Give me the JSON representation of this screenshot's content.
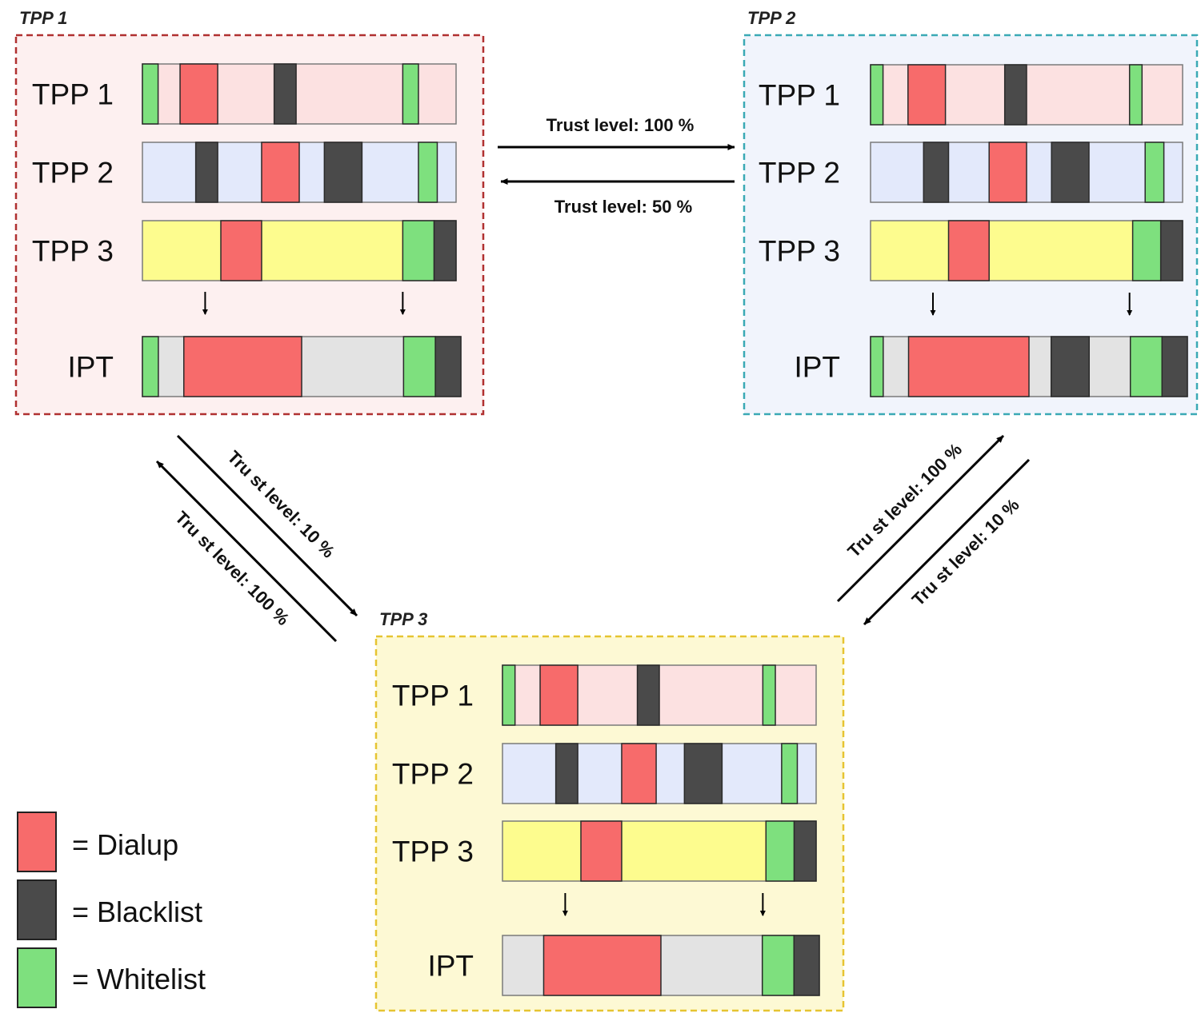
{
  "panels": [
    {
      "title": "TPP 1",
      "fill": "#fdf0f0",
      "border": "#b03030",
      "rows": [
        {
          "label": "TPP 1",
          "bg": "#fce1e1",
          "segments": [
            {
              "type": "whitelist",
              "from": 0.0,
              "to": 0.05
            },
            {
              "type": "dialup",
              "from": 0.12,
              "to": 0.24
            },
            {
              "type": "blacklist",
              "from": 0.42,
              "to": 0.49
            },
            {
              "type": "whitelist",
              "from": 0.83,
              "to": 0.88
            }
          ]
        },
        {
          "label": "TPP 2",
          "bg": "#e3e9fb",
          "segments": [
            {
              "type": "blacklist",
              "from": 0.17,
              "to": 0.24
            },
            {
              "type": "dialup",
              "from": 0.38,
              "to": 0.5
            },
            {
              "type": "blacklist",
              "from": 0.58,
              "to": 0.7
            },
            {
              "type": "whitelist",
              "from": 0.88,
              "to": 0.94
            }
          ]
        },
        {
          "label": "TPP 3",
          "bg": "#fdfc8e",
          "segments": [
            {
              "type": "dialup",
              "from": 0.25,
              "to": 0.38
            },
            {
              "type": "whitelist",
              "from": 0.83,
              "to": 0.93
            },
            {
              "type": "blacklist",
              "from": 0.93,
              "to": 1.0
            }
          ]
        },
        {
          "label": "IPT",
          "bg": "#e3e3e3",
          "segments": [
            {
              "type": "whitelist",
              "from": 0.0,
              "to": 0.05
            },
            {
              "type": "dialup",
              "from": 0.13,
              "to": 0.5
            },
            {
              "type": "whitelist",
              "from": 0.82,
              "to": 0.92
            },
            {
              "type": "blacklist",
              "from": 0.92,
              "to": 1.0
            }
          ]
        }
      ]
    },
    {
      "title": "TPP 2",
      "fill": "#f1f4fc",
      "border": "#3aa9b5",
      "rows": [
        {
          "label": "TPP 1",
          "bg": "#fce1e1",
          "segments": [
            {
              "type": "whitelist",
              "from": 0.0,
              "to": 0.04
            },
            {
              "type": "dialup",
              "from": 0.12,
              "to": 0.24
            },
            {
              "type": "blacklist",
              "from": 0.43,
              "to": 0.5
            },
            {
              "type": "whitelist",
              "from": 0.83,
              "to": 0.87
            }
          ]
        },
        {
          "label": "TPP 2",
          "bg": "#e3e9fb",
          "segments": [
            {
              "type": "blacklist",
              "from": 0.17,
              "to": 0.25
            },
            {
              "type": "dialup",
              "from": 0.38,
              "to": 0.5
            },
            {
              "type": "blacklist",
              "from": 0.58,
              "to": 0.7
            },
            {
              "type": "whitelist",
              "from": 0.88,
              "to": 0.94
            }
          ]
        },
        {
          "label": "TPP 3",
          "bg": "#fdfc8e",
          "segments": [
            {
              "type": "dialup",
              "from": 0.25,
              "to": 0.38
            },
            {
              "type": "whitelist",
              "from": 0.84,
              "to": 0.93
            },
            {
              "type": "blacklist",
              "from": 0.93,
              "to": 1.0
            }
          ]
        },
        {
          "label": "IPT",
          "bg": "#e3e3e3",
          "segments": [
            {
              "type": "whitelist",
              "from": 0.0,
              "to": 0.04
            },
            {
              "type": "dialup",
              "from": 0.12,
              "to": 0.5
            },
            {
              "type": "blacklist",
              "from": 0.57,
              "to": 0.69
            },
            {
              "type": "whitelist",
              "from": 0.82,
              "to": 0.92
            },
            {
              "type": "blacklist",
              "from": 0.92,
              "to": 1.0
            }
          ]
        }
      ]
    },
    {
      "title": "TPP 3",
      "fill": "#fdf9d4",
      "border": "#e6c431",
      "rows": [
        {
          "label": "TPP 1",
          "bg": "#fce1e1",
          "segments": [
            {
              "type": "whitelist",
              "from": 0.0,
              "to": 0.04
            },
            {
              "type": "dialup",
              "from": 0.12,
              "to": 0.24
            },
            {
              "type": "blacklist",
              "from": 0.43,
              "to": 0.5
            },
            {
              "type": "whitelist",
              "from": 0.83,
              "to": 0.87
            }
          ]
        },
        {
          "label": "TPP 2",
          "bg": "#e3e9fb",
          "segments": [
            {
              "type": "blacklist",
              "from": 0.17,
              "to": 0.24
            },
            {
              "type": "dialup",
              "from": 0.38,
              "to": 0.49
            },
            {
              "type": "blacklist",
              "from": 0.58,
              "to": 0.7
            },
            {
              "type": "whitelist",
              "from": 0.89,
              "to": 0.94
            }
          ]
        },
        {
          "label": "TPP 3",
          "bg": "#fdfc8e",
          "segments": [
            {
              "type": "dialup",
              "from": 0.25,
              "to": 0.38
            },
            {
              "type": "whitelist",
              "from": 0.84,
              "to": 0.93
            },
            {
              "type": "blacklist",
              "from": 0.93,
              "to": 1.0
            }
          ]
        },
        {
          "label": "IPT",
          "bg": "#e3e3e3",
          "segments": [
            {
              "type": "dialup",
              "from": 0.13,
              "to": 0.5
            },
            {
              "type": "whitelist",
              "from": 0.82,
              "to": 0.92
            },
            {
              "type": "blacklist",
              "from": 0.92,
              "to": 1.0
            }
          ]
        }
      ]
    }
  ],
  "trust_edges": [
    {
      "from": "TPP 1",
      "to": "TPP 2",
      "label": "Trust level: 100 %"
    },
    {
      "from": "TPP 2",
      "to": "TPP 1",
      "label": "Trust level: 50 %"
    },
    {
      "from": "TPP 1",
      "to": "TPP 3",
      "label": "Tru st level: 10 %"
    },
    {
      "from": "TPP 3",
      "to": "TPP 1",
      "label": "Tru st level: 100 %"
    },
    {
      "from": "TPP 3",
      "to": "TPP 2",
      "label": "Tru st level: 100 %"
    },
    {
      "from": "TPP 2",
      "to": "TPP 3",
      "label": "Tru st level: 10 %"
    }
  ],
  "legend": [
    {
      "type": "dialup",
      "label": "= Dialup"
    },
    {
      "type": "blacklist",
      "label": "= Blacklist"
    },
    {
      "type": "whitelist",
      "label": "= Whitelist"
    }
  ],
  "colors": {
    "dialup": "#f76b6b",
    "blacklist": "#4a4a4a",
    "whitelist": "#7ee07e",
    "bar_border": "#7a7a7a"
  }
}
